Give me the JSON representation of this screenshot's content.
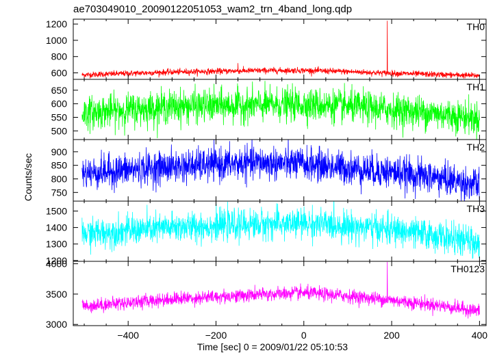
{
  "title": "ae703049010_20090122051053_wam2_trn_4band_long.qdp",
  "xlabel": "Time [sec] 0 = 2009/01/22 05:10:53",
  "ylabel": "Counts/sec",
  "chart_data": {
    "type": "line",
    "title": "ae703049010_20090122051053_wam2_trn_4band_long.qdp",
    "xlabel": "Time [sec] 0 = 2009/01/22 05:10:53",
    "ylabel": "Counts/sec",
    "xlim": [
      -525,
      415
    ],
    "x_ticks": [
      -400,
      -200,
      0,
      200,
      400
    ],
    "x_tick_labels": [
      "−400",
      "−200",
      "0",
      "200",
      "400"
    ],
    "x_range": [
      -505,
      400
    ],
    "grid": false,
    "legend": "none",
    "panels": [
      {
        "name": "TH0",
        "color": "#ff0000",
        "ylim": [
          520,
          1260
        ],
        "y_ticks": [
          600,
          800,
          1000,
          1200
        ],
        "y_tick_labels": [
          "600",
          "800",
          "1000",
          "1200"
        ],
        "baseline": [
          [
            -505,
            575
          ],
          [
            -300,
            610
          ],
          [
            -100,
            628
          ],
          [
            0,
            630
          ],
          [
            100,
            615
          ],
          [
            200,
            595
          ],
          [
            300,
            580
          ],
          [
            400,
            565
          ]
        ],
        "noise_sd": 18,
        "spikes": [
          {
            "x": 190,
            "y": 1240
          },
          {
            "x": -150,
            "y": 720
          }
        ]
      },
      {
        "name": "TH1",
        "color": "#00ff00",
        "ylim": [
          468,
          690
        ],
        "y_ticks": [
          500,
          550,
          600,
          650
        ],
        "y_tick_labels": [
          "500",
          "550",
          "600",
          "650"
        ],
        "baseline": [
          [
            -505,
            565
          ],
          [
            -300,
            590
          ],
          [
            -100,
            595
          ],
          [
            0,
            598
          ],
          [
            100,
            590
          ],
          [
            200,
            578
          ],
          [
            300,
            565
          ],
          [
            400,
            545
          ]
        ],
        "noise_sd": 30,
        "spikes": []
      },
      {
        "name": "TH2",
        "color": "#0000ff",
        "ylim": [
          718,
          945
        ],
        "y_ticks": [
          750,
          800,
          850,
          900
        ],
        "y_tick_labels": [
          "750",
          "800",
          "850",
          "900"
        ],
        "baseline": [
          [
            -505,
            820
          ],
          [
            -300,
            845
          ],
          [
            -100,
            860
          ],
          [
            0,
            855
          ],
          [
            100,
            840
          ],
          [
            200,
            825
          ],
          [
            300,
            805
          ],
          [
            400,
            775
          ]
        ],
        "noise_sd": 30,
        "spikes": []
      },
      {
        "name": "TH3",
        "color": "#00ffff",
        "ylim": [
          1195,
          1560
        ],
        "y_ticks": [
          1200,
          1300,
          1400,
          1500
        ],
        "y_tick_labels": [
          "1200",
          "1300",
          "1400",
          "1500"
        ],
        "baseline": [
          [
            -505,
            1360
          ],
          [
            -300,
            1400
          ],
          [
            -100,
            1420
          ],
          [
            0,
            1425
          ],
          [
            100,
            1410
          ],
          [
            200,
            1385
          ],
          [
            300,
            1350
          ],
          [
            400,
            1305
          ]
        ],
        "noise_sd": 45,
        "spikes": []
      },
      {
        "name": "TH0123",
        "color": "#ff00ff",
        "ylim": [
          2980,
          4040
        ],
        "y_ticks": [
          3000,
          3500,
          4000
        ],
        "y_tick_labels": [
          "3000",
          "3500",
          "4000"
        ],
        "baseline": [
          [
            -505,
            3300
          ],
          [
            -300,
            3420
          ],
          [
            -100,
            3490
          ],
          [
            0,
            3520
          ],
          [
            100,
            3470
          ],
          [
            200,
            3400
          ],
          [
            300,
            3320
          ],
          [
            400,
            3220
          ]
        ],
        "noise_sd": 55,
        "spikes": [
          {
            "x": 190,
            "y": 4030
          }
        ]
      }
    ]
  }
}
